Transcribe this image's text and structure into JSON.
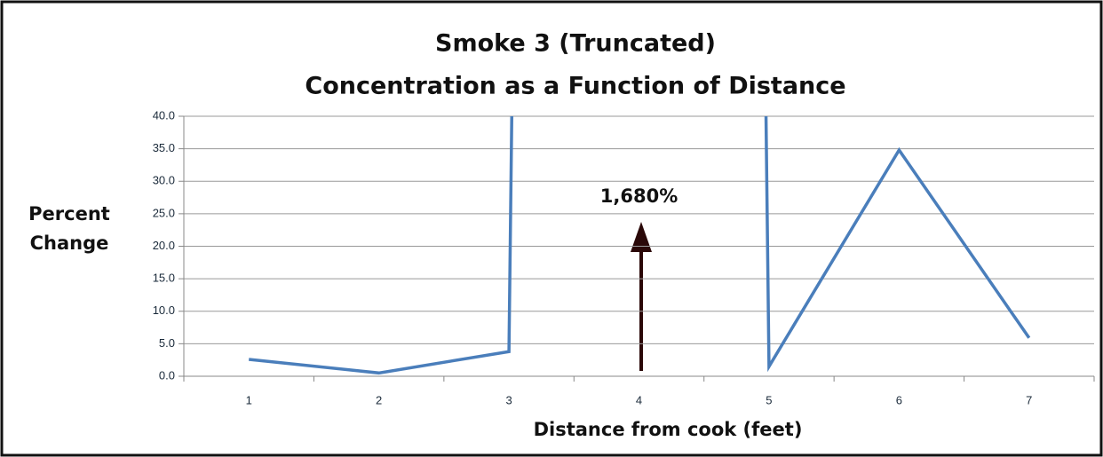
{
  "chart_data": {
    "type": "line",
    "title": "Smoke 3 (Truncated)",
    "subtitle": "Concentration as a Function of Distance",
    "xlabel": "Distance from cook (feet)",
    "ylabel": [
      "Percent",
      "Change"
    ],
    "categories": [
      "1",
      "2",
      "3",
      "4",
      "5",
      "6",
      "7"
    ],
    "values": [
      2.6,
      0.5,
      3.8,
      1680,
      1.5,
      34.8,
      5.9
    ],
    "value_labels": [
      null,
      null,
      null,
      "1,680%",
      null,
      null,
      null
    ],
    "color": "#4a7ebb",
    "ylim": [
      0,
      40
    ],
    "yticks": [
      {
        "value": 0,
        "label": "0.0"
      },
      {
        "value": 5,
        "label": "5.0"
      },
      {
        "value": 10,
        "label": "10.0"
      },
      {
        "value": 15,
        "label": "15.0"
      },
      {
        "value": 20,
        "label": "20.0"
      },
      {
        "value": 25,
        "label": "25.0"
      },
      {
        "value": 30,
        "label": "30.0"
      },
      {
        "value": 35,
        "label": "35.0"
      },
      {
        "value": 40,
        "label": "40.0"
      }
    ],
    "grid": true
  }
}
